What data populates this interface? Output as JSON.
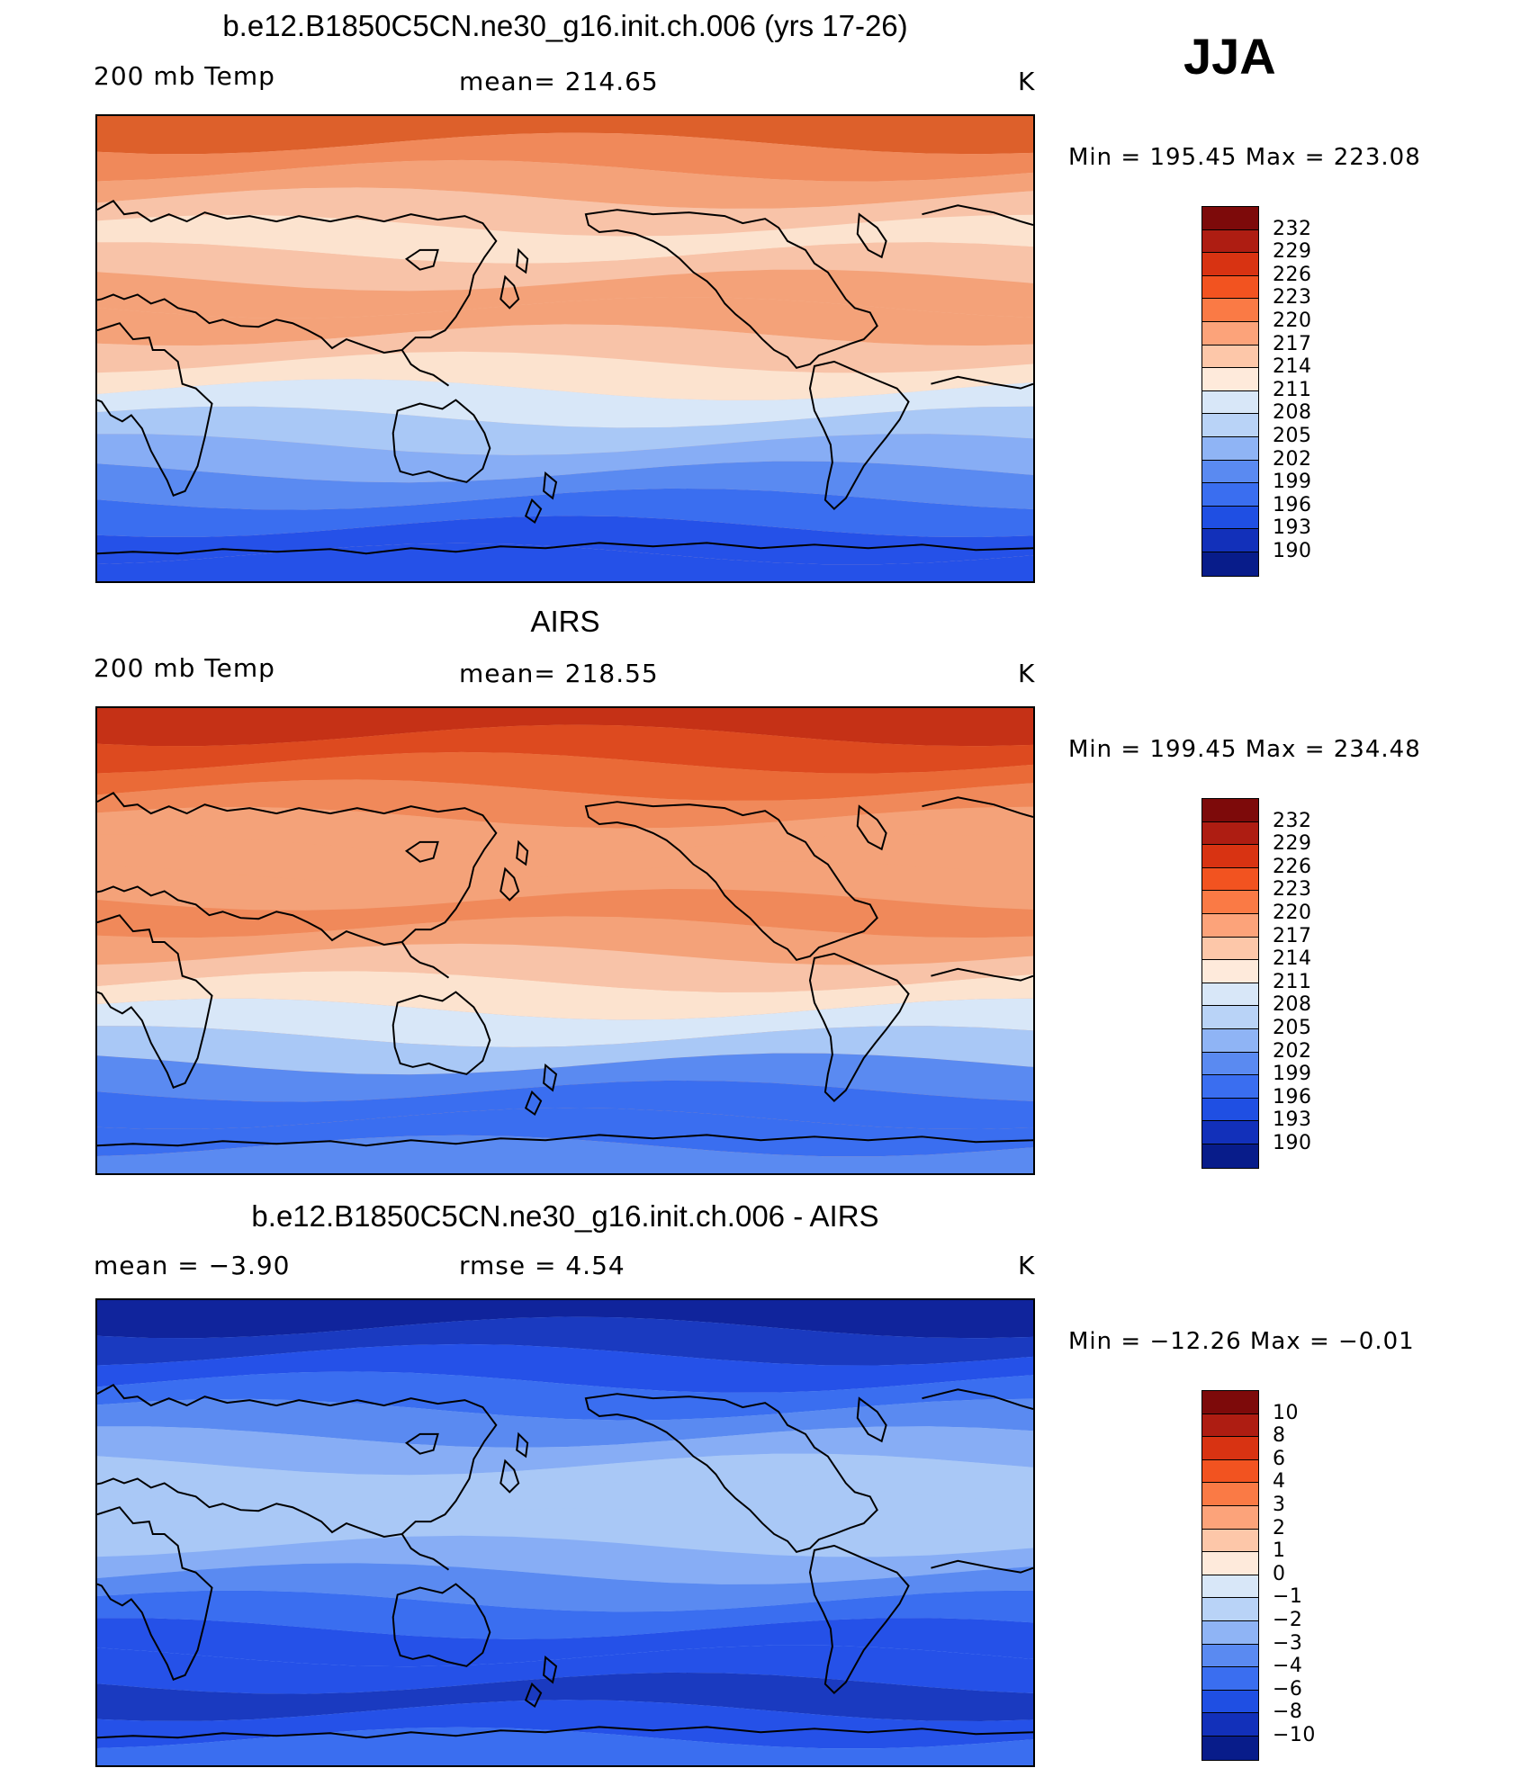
{
  "season": "JJA",
  "panels": [
    {
      "id": "model",
      "title": "b.e12.B1850C5CN.ne30_g16.init.ch.006 (yrs 17-26)",
      "left_label": "200 mb Temp",
      "center_label": "mean=  214.65",
      "right_label": "K",
      "minmax": "Min  =  195.45  Max  =  223.08",
      "colorbar_levels": [
        "232",
        "229",
        "226",
        "223",
        "220",
        "217",
        "214",
        "211",
        "208",
        "205",
        "202",
        "199",
        "196",
        "193",
        "190"
      ],
      "bands": [
        "#dd602b",
        "#f0895a",
        "#f4a279",
        "#f8c3a8",
        "#fce3cf",
        "#f8c3a8",
        "#f4a279",
        "#f4a279",
        "#f8c3a8",
        "#fce3cf",
        "#d8e7f8",
        "#a9c8f6",
        "#87adf5",
        "#5a8af1",
        "#3a6ef0",
        "#2551e8",
        "#2551e8"
      ]
    },
    {
      "id": "obs",
      "title": "AIRS",
      "left_label": "200 mb Temp",
      "center_label": "mean=  218.55",
      "right_label": "K",
      "minmax": "Min  =  199.45  Max  =  234.48",
      "colorbar_levels": [
        "232",
        "229",
        "226",
        "223",
        "220",
        "217",
        "214",
        "211",
        "208",
        "205",
        "202",
        "199",
        "196",
        "193",
        "190"
      ],
      "bands": [
        "#c53116",
        "#dd4a1f",
        "#ea6a37",
        "#f0895a",
        "#f4a279",
        "#f4a279",
        "#f4a279",
        "#f0895a",
        "#f4a279",
        "#f8c3a8",
        "#fce3cf",
        "#d8e7f8",
        "#a9c8f6",
        "#5a8af1",
        "#3a6ef0",
        "#3a6ef0",
        "#5a8af1"
      ]
    },
    {
      "id": "diff",
      "title": "b.e12.B1850C5CN.ne30_g16.init.ch.006 - AIRS",
      "left_label": "mean  =    −3.90",
      "center_label": "rmse  =     4.54",
      "right_label": "K",
      "minmax": "Min  =  −12.26  Max  =    −0.01",
      "colorbar_levels": [
        "10",
        "8",
        "6",
        "4",
        "3",
        "2",
        "1",
        "0",
        "−1",
        "−2",
        "−3",
        "−4",
        "−6",
        "−8",
        "−10"
      ],
      "bands": [
        "#10249c",
        "#1a3ac0",
        "#2551e8",
        "#3a6ef0",
        "#5a8af1",
        "#87adf5",
        "#a9c8f6",
        "#a9c8f6",
        "#a9c8f6",
        "#87adf5",
        "#5a8af1",
        "#3a6ef0",
        "#2551e8",
        "#2551e8",
        "#1a3ac0",
        "#2551e8",
        "#3a6ef0"
      ]
    }
  ],
  "colorbar_colors": [
    "#7d0a0a",
    "#ae1d12",
    "#d83312",
    "#f25320",
    "#fa7a45",
    "#fca37a",
    "#fdc7a9",
    "#feeadb",
    "#d8e7f8",
    "#b9d3f7",
    "#8fb4f5",
    "#5a8af1",
    "#3a6ef0",
    "#1f4fe3",
    "#1230ba",
    "#081c8a"
  ]
}
